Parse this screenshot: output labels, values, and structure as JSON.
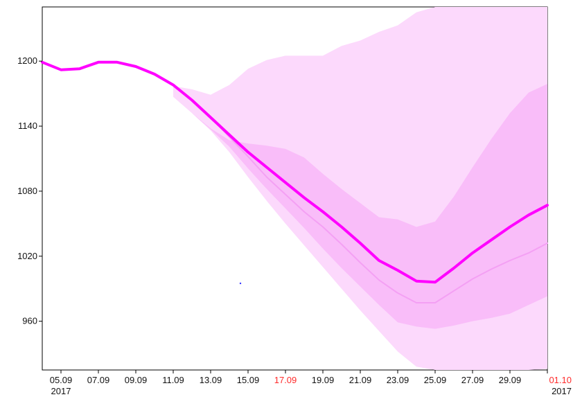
{
  "chart_data": {
    "type": "area",
    "title": "",
    "xlabel": "",
    "ylabel": "",
    "xlim": [
      "2017-09-04",
      "2017-10-01"
    ],
    "ylim": [
      915,
      1250
    ],
    "grid": false,
    "legend": "none",
    "y_ticks": [
      {
        "value": 960,
        "label": "960"
      },
      {
        "value": 1020,
        "label": "1020"
      },
      {
        "value": 1080,
        "label": "1080"
      },
      {
        "value": 1140,
        "label": "1140"
      },
      {
        "value": 1200,
        "label": "1200"
      }
    ],
    "x_ticks": [
      {
        "date": "2017-09-05",
        "label": "05.09",
        "year": "2017",
        "color": "#111111"
      },
      {
        "date": "2017-09-07",
        "label": "07.09",
        "color": "#111111"
      },
      {
        "date": "2017-09-09",
        "label": "09.09",
        "color": "#111111"
      },
      {
        "date": "2017-09-11",
        "label": "11.09",
        "color": "#111111"
      },
      {
        "date": "2017-09-13",
        "label": "13.09",
        "color": "#111111"
      },
      {
        "date": "2017-09-15",
        "label": "15.09",
        "color": "#111111"
      },
      {
        "date": "2017-09-17",
        "label": "17.09",
        "color": "#ff2a2a"
      },
      {
        "date": "2017-09-19",
        "label": "19.09",
        "color": "#111111"
      },
      {
        "date": "2017-09-21",
        "label": "21.09",
        "color": "#111111"
      },
      {
        "date": "2017-09-23",
        "label": "23.09",
        "color": "#111111"
      },
      {
        "date": "2017-09-25",
        "label": "25.09",
        "color": "#111111"
      },
      {
        "date": "2017-09-27",
        "label": "27.09",
        "color": "#111111"
      },
      {
        "date": "2017-09-29",
        "label": "29.09",
        "color": "#111111"
      },
      {
        "date": "2017-10-01",
        "label": "01.10",
        "year": "2017",
        "color": "#ff2a2a"
      }
    ],
    "outer_band": {
      "color": "#fcd9fc",
      "upper": [
        [
          "2017-09-11",
          1177
        ],
        [
          "2017-09-12",
          1174
        ],
        [
          "2017-09-13",
          1169
        ],
        [
          "2017-09-14",
          1178
        ],
        [
          "2017-09-15",
          1193
        ],
        [
          "2017-09-16",
          1201
        ],
        [
          "2017-09-17",
          1205
        ],
        [
          "2017-09-18",
          1205
        ],
        [
          "2017-09-19",
          1205
        ],
        [
          "2017-09-20",
          1214
        ],
        [
          "2017-09-21",
          1219
        ],
        [
          "2017-09-22",
          1227
        ],
        [
          "2017-09-23",
          1233
        ],
        [
          "2017-09-24",
          1245
        ],
        [
          "2017-09-25",
          1250
        ],
        [
          "2017-09-26",
          1250
        ],
        [
          "2017-09-27",
          1250
        ],
        [
          "2017-09-28",
          1250
        ],
        [
          "2017-09-29",
          1250
        ],
        [
          "2017-09-30",
          1250
        ],
        [
          "2017-10-01",
          1250
        ]
      ],
      "lower": [
        [
          "2017-09-11",
          1167
        ],
        [
          "2017-09-12",
          1152
        ],
        [
          "2017-09-13",
          1136
        ],
        [
          "2017-09-14",
          1116
        ],
        [
          "2017-09-15",
          1093
        ],
        [
          "2017-09-16",
          1071
        ],
        [
          "2017-09-17",
          1050
        ],
        [
          "2017-09-18",
          1030
        ],
        [
          "2017-09-19",
          1010
        ],
        [
          "2017-09-20",
          990
        ],
        [
          "2017-09-21",
          970
        ],
        [
          "2017-09-22",
          951
        ],
        [
          "2017-09-23",
          932
        ],
        [
          "2017-09-24",
          918
        ],
        [
          "2017-09-25",
          909
        ],
        [
          "2017-09-26",
          910
        ],
        [
          "2017-09-27",
          911
        ],
        [
          "2017-09-28",
          912
        ],
        [
          "2017-09-29",
          913
        ],
        [
          "2017-09-30",
          914
        ],
        [
          "2017-10-01",
          916
        ]
      ]
    },
    "inner_band": {
      "color": "#f9bdf9",
      "upper": [
        [
          "2017-09-11",
          1167
        ],
        [
          "2017-09-12",
          1152
        ],
        [
          "2017-09-13",
          1138
        ],
        [
          "2017-09-14",
          1127
        ],
        [
          "2017-09-15",
          1124
        ],
        [
          "2017-09-16",
          1122
        ],
        [
          "2017-09-17",
          1119
        ],
        [
          "2017-09-18",
          1111
        ],
        [
          "2017-09-19",
          1096
        ],
        [
          "2017-09-20",
          1082
        ],
        [
          "2017-09-21",
          1069
        ],
        [
          "2017-09-22",
          1056
        ],
        [
          "2017-09-23",
          1054
        ],
        [
          "2017-09-24",
          1047
        ],
        [
          "2017-09-25",
          1052
        ],
        [
          "2017-09-26",
          1075
        ],
        [
          "2017-09-27",
          1102
        ],
        [
          "2017-09-28",
          1128
        ],
        [
          "2017-09-29",
          1152
        ],
        [
          "2017-09-30",
          1171
        ],
        [
          "2017-10-01",
          1179
        ]
      ],
      "lower": [
        [
          "2017-09-11",
          1167
        ],
        [
          "2017-09-12",
          1152
        ],
        [
          "2017-09-13",
          1137
        ],
        [
          "2017-09-14",
          1121
        ],
        [
          "2017-09-15",
          1101
        ],
        [
          "2017-09-16",
          1082
        ],
        [
          "2017-09-17",
          1064
        ],
        [
          "2017-09-18",
          1046
        ],
        [
          "2017-09-19",
          1027
        ],
        [
          "2017-09-20",
          1009
        ],
        [
          "2017-09-21",
          992
        ],
        [
          "2017-09-22",
          975
        ],
        [
          "2017-09-23",
          959
        ],
        [
          "2017-09-24",
          955
        ],
        [
          "2017-09-25",
          953
        ],
        [
          "2017-09-26",
          956
        ],
        [
          "2017-09-27",
          960
        ],
        [
          "2017-09-28",
          963
        ],
        [
          "2017-09-29",
          967
        ],
        [
          "2017-09-30",
          975
        ],
        [
          "2017-10-01",
          983
        ]
      ]
    },
    "series": [
      {
        "color": "#ff00ff",
        "width": 4,
        "points": [
          [
            "2017-09-04",
            1199
          ],
          [
            "2017-09-05",
            1192
          ],
          [
            "2017-09-06",
            1193
          ],
          [
            "2017-09-07",
            1199
          ],
          [
            "2017-09-08",
            1199
          ],
          [
            "2017-09-09",
            1195
          ],
          [
            "2017-09-10",
            1188
          ],
          [
            "2017-09-11",
            1178
          ],
          [
            "2017-09-12",
            1164
          ],
          [
            "2017-09-13",
            1148
          ],
          [
            "2017-09-14",
            1132
          ],
          [
            "2017-09-15",
            1116
          ],
          [
            "2017-09-16",
            1102
          ],
          [
            "2017-09-17",
            1088
          ],
          [
            "2017-09-18",
            1074
          ],
          [
            "2017-09-19",
            1061
          ],
          [
            "2017-09-20",
            1047
          ],
          [
            "2017-09-21",
            1032
          ],
          [
            "2017-09-22",
            1016
          ],
          [
            "2017-09-23",
            1007
          ],
          [
            "2017-09-24",
            997
          ],
          [
            "2017-09-25",
            996
          ],
          [
            "2017-09-26",
            1009
          ],
          [
            "2017-09-27",
            1023
          ],
          [
            "2017-09-28",
            1035
          ],
          [
            "2017-09-29",
            1047
          ],
          [
            "2017-09-30",
            1058
          ],
          [
            "2017-10-01",
            1067
          ]
        ]
      },
      {
        "color": "#f4a0f4",
        "width": 2,
        "points": [
          [
            "2017-09-13",
            1148
          ],
          [
            "2017-09-14",
            1130
          ],
          [
            "2017-09-15",
            1112
          ],
          [
            "2017-09-16",
            1093
          ],
          [
            "2017-09-17",
            1077
          ],
          [
            "2017-09-18",
            1061
          ],
          [
            "2017-09-19",
            1047
          ],
          [
            "2017-09-20",
            1031
          ],
          [
            "2017-09-21",
            1014
          ],
          [
            "2017-09-22",
            998
          ],
          [
            "2017-09-23",
            986
          ],
          [
            "2017-09-24",
            977
          ],
          [
            "2017-09-25",
            977
          ],
          [
            "2017-09-26",
            988
          ],
          [
            "2017-09-27",
            999
          ],
          [
            "2017-09-28",
            1008
          ],
          [
            "2017-09-29",
            1016
          ],
          [
            "2017-09-30",
            1023
          ],
          [
            "2017-10-01",
            1032
          ]
        ]
      }
    ]
  }
}
